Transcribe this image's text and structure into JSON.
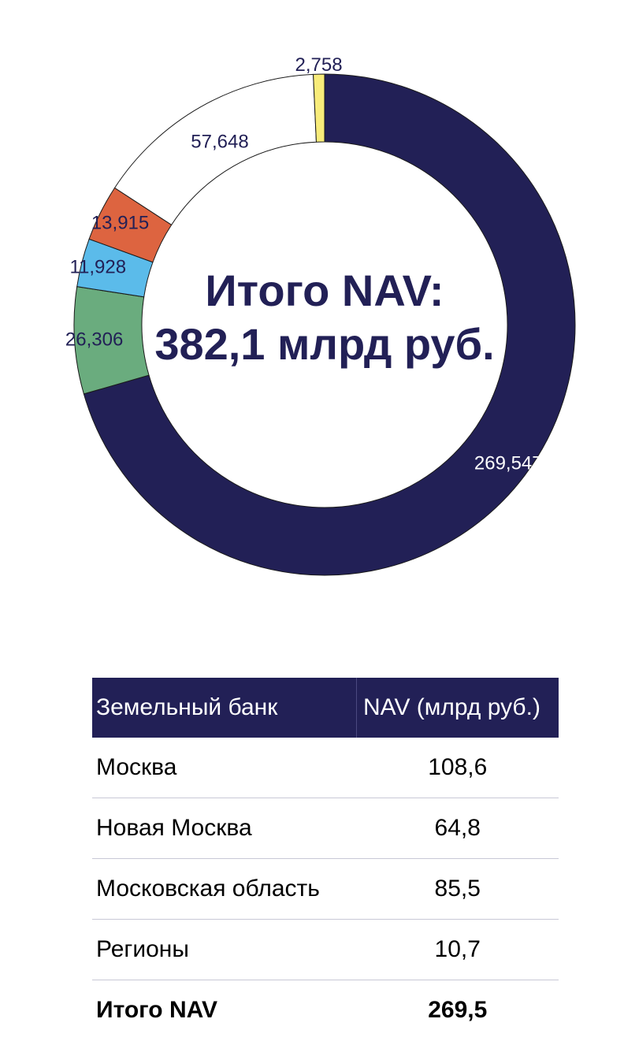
{
  "chart_data": {
    "type": "pie",
    "donut": true,
    "center_text": [
      "Итого NAV:",
      "382,1 млрд руб."
    ],
    "slices": [
      {
        "label": "269,547",
        "value": 269.547,
        "color": "#222056",
        "label_color": "#ffffff"
      },
      {
        "label": "26,306",
        "value": 26.306,
        "color": "#6aac7e",
        "label_color": "#222056"
      },
      {
        "label": "11,928",
        "value": 11.928,
        "color": "#5bbbea",
        "label_color": "#222056"
      },
      {
        "label": "13,915",
        "value": 13.915,
        "color": "#dd6440",
        "label_color": "#222056"
      },
      {
        "label": "57,648",
        "value": 57.648,
        "color": "#ffffff",
        "label_color": "#222056"
      },
      {
        "label": "2,758",
        "value": 2.758,
        "color": "#f8ec7a",
        "label_color": "#222056"
      }
    ]
  },
  "table": {
    "headers": [
      "Земельный банк",
      "NAV (млрд руб.)"
    ],
    "rows": [
      {
        "name": "Москва",
        "value": "108,6"
      },
      {
        "name": "Новая Москва",
        "value": "64,8"
      },
      {
        "name": "Московская область",
        "value": "85,5"
      },
      {
        "name": "Регионы",
        "value": "10,7"
      }
    ],
    "total": {
      "name": "Итого NAV",
      "value": "269,5"
    }
  },
  "colors": {
    "navy": "#222056"
  }
}
